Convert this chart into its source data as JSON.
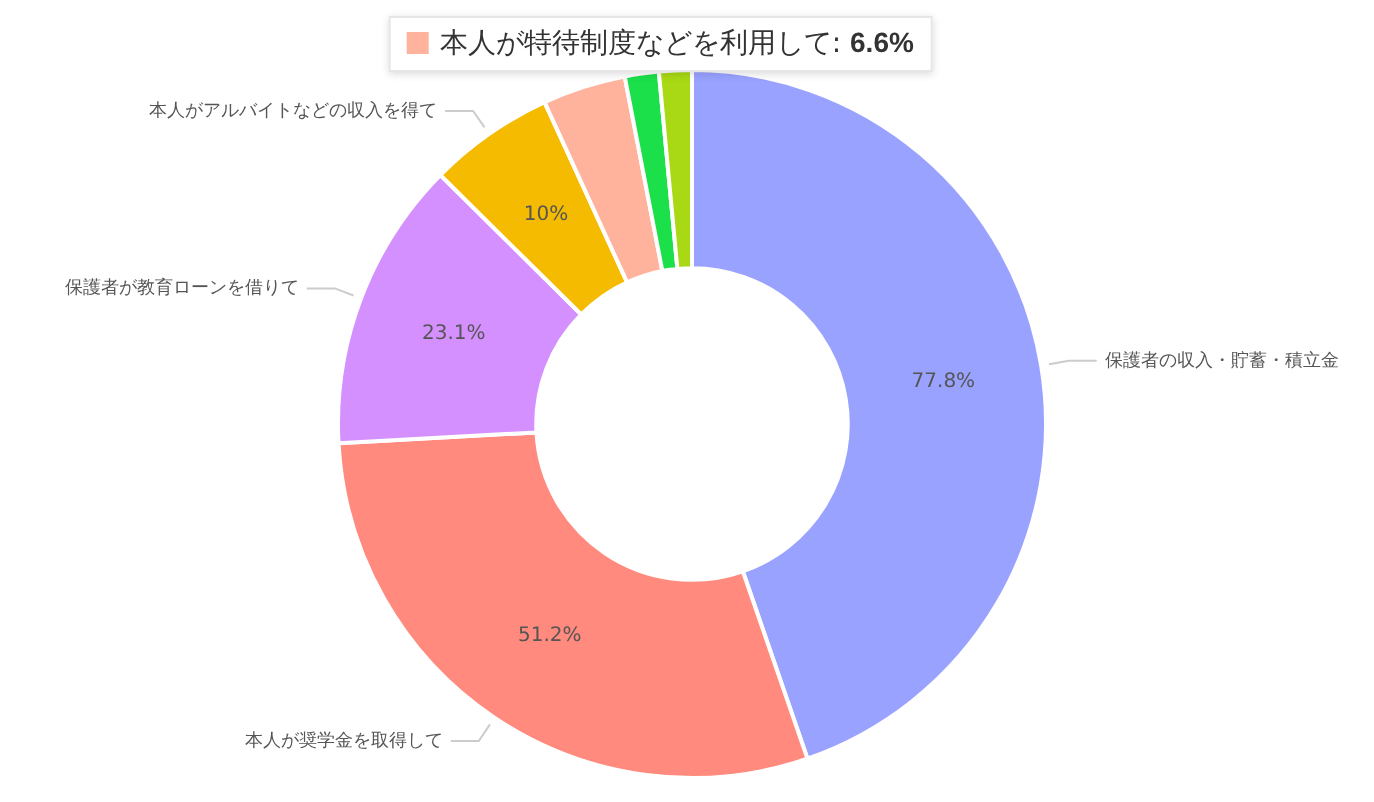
{
  "chart_data": {
    "type": "donut",
    "categories": [
      "保護者の収入・貯蓄・積立金",
      "本人が奨学金を取得して",
      "保護者が教育ローンを借りて",
      "本人がアルバイトなどの収入を得て",
      null,
      null,
      null
    ],
    "values": [
      77.8,
      51.2,
      23.1,
      10,
      6.6,
      2.7,
      2.6
    ],
    "value_labels": [
      "77.8%",
      "51.2%",
      "23.1%",
      "10%",
      null,
      null,
      null
    ],
    "annotations": [
      "本人が特待制度などを利用して: 6.6%"
    ],
    "colors": [
      "#99a3ff",
      "#ff8a7d",
      "#d490ff",
      "#f5bb00",
      "#ffb39c",
      "#1be04a",
      "#a8d914"
    ],
    "legend": false
  }
}
